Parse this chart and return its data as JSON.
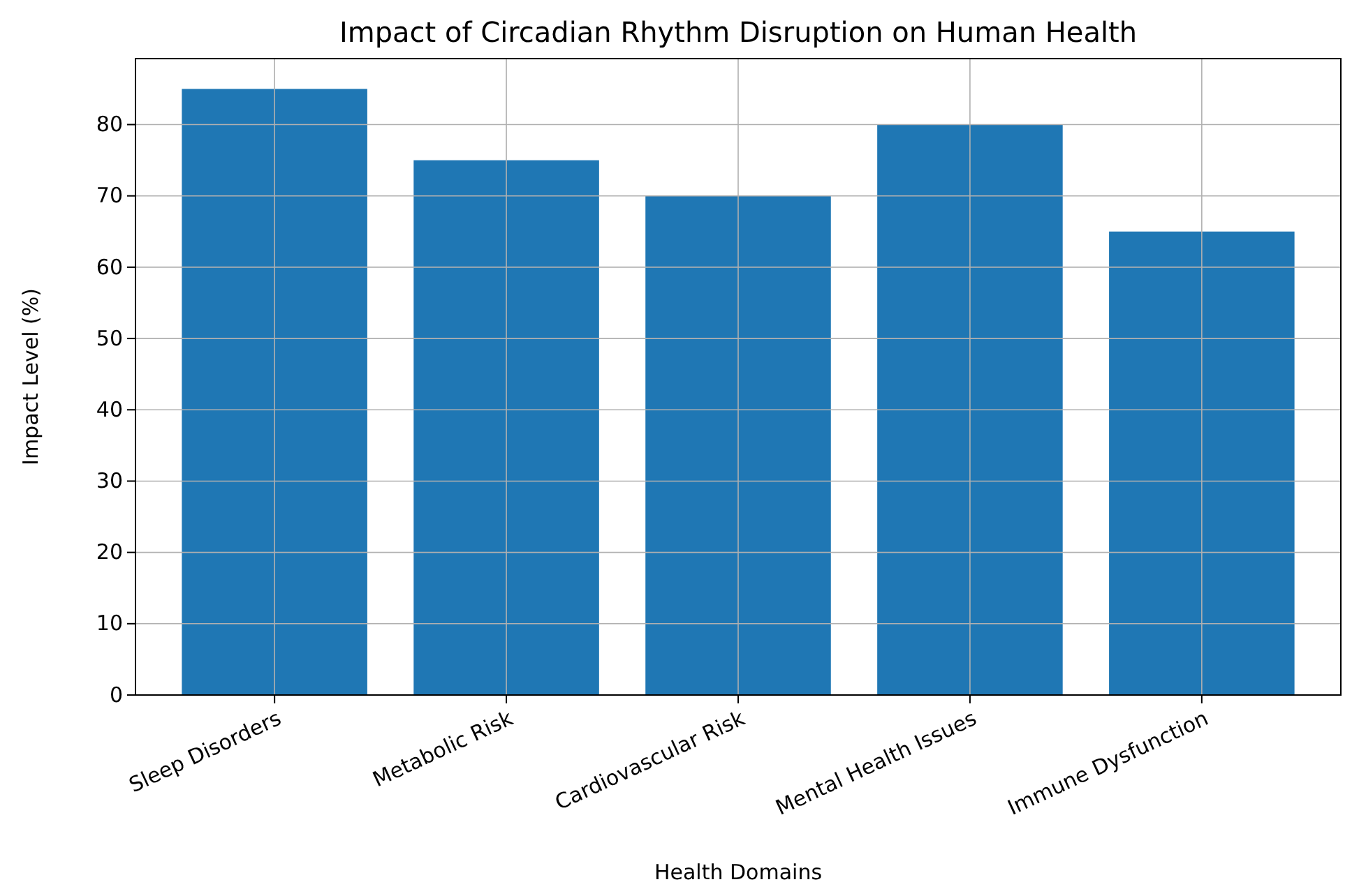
{
  "chart_data": {
    "type": "bar",
    "title": "Impact of Circadian Rhythm Disruption on Human Health",
    "xlabel": "Health Domains",
    "ylabel": "Impact Level (%)",
    "categories": [
      "Sleep Disorders",
      "Metabolic Risk",
      "Cardiovascular Risk",
      "Mental Health Issues",
      "Immune Dysfunction"
    ],
    "values": [
      85,
      75,
      70,
      80,
      65
    ],
    "color": "#1f77b4",
    "ylim": [
      0,
      89.25
    ],
    "yticks": [
      0,
      10,
      20,
      30,
      40,
      50,
      60,
      70,
      80
    ],
    "grid": true
  }
}
